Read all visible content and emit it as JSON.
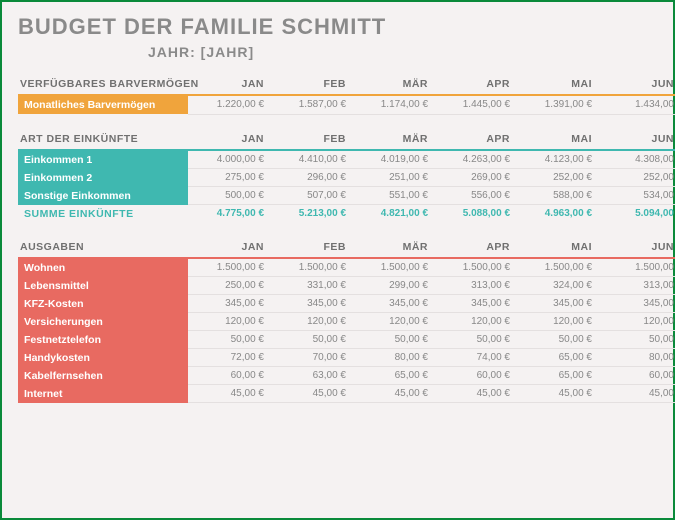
{
  "title": "BUDGET DER FAMILIE SCHMITT",
  "subtitle": "JAHR: [JAHR]",
  "months": [
    "JAN",
    "FEB",
    "MÄR",
    "APR",
    "MAI",
    "JUN"
  ],
  "colors": {
    "cash_accent": "#f0a43c",
    "income_accent": "#3fb8b0",
    "expense_accent": "#e86a61",
    "total_text": "#3fb8b0"
  },
  "sections": [
    {
      "id": "cash",
      "label": "VERFÜGBARES BARVERMÖGEN",
      "accent": "#f0a43c",
      "rows": [
        {
          "label": "Monatliches Barvermögen",
          "values": [
            "1.220,00 €",
            "1.587,00 €",
            "1.174,00 €",
            "1.445,00 €",
            "1.391,00 €",
            "1.434,00"
          ]
        }
      ]
    },
    {
      "id": "income",
      "label": "ART DER EINKÜNFTE",
      "accent": "#3fb8b0",
      "rows": [
        {
          "label": "Einkommen 1",
          "values": [
            "4.000,00 €",
            "4.410,00 €",
            "4.019,00 €",
            "4.263,00 €",
            "4.123,00 €",
            "4.308,00"
          ]
        },
        {
          "label": "Einkommen 2",
          "values": [
            "275,00 €",
            "296,00 €",
            "251,00 €",
            "269,00 €",
            "252,00 €",
            "252,00"
          ]
        },
        {
          "label": "Sonstige Einkommen",
          "values": [
            "500,00 €",
            "507,00 €",
            "551,00 €",
            "556,00 €",
            "588,00 €",
            "534,00"
          ]
        }
      ],
      "total": {
        "label": "SUMME EINKÜNFTE",
        "values": [
          "4.775,00 €",
          "5.213,00 €",
          "4.821,00 €",
          "5.088,00 €",
          "4.963,00 €",
          "5.094,00"
        ]
      }
    },
    {
      "id": "expense",
      "label": "AUSGABEN",
      "accent": "#e86a61",
      "rows": [
        {
          "label": "Wohnen",
          "values": [
            "1.500,00 €",
            "1.500,00 €",
            "1.500,00 €",
            "1.500,00 €",
            "1.500,00 €",
            "1.500,00"
          ]
        },
        {
          "label": "Lebensmittel",
          "values": [
            "250,00 €",
            "331,00 €",
            "299,00 €",
            "313,00 €",
            "324,00 €",
            "313,00"
          ]
        },
        {
          "label": "KFZ-Kosten",
          "values": [
            "345,00 €",
            "345,00 €",
            "345,00 €",
            "345,00 €",
            "345,00 €",
            "345,00"
          ]
        },
        {
          "label": "Versicherungen",
          "values": [
            "120,00 €",
            "120,00 €",
            "120,00 €",
            "120,00 €",
            "120,00 €",
            "120,00"
          ]
        },
        {
          "label": "Festnetztelefon",
          "values": [
            "50,00 €",
            "50,00 €",
            "50,00 €",
            "50,00 €",
            "50,00 €",
            "50,00"
          ]
        },
        {
          "label": "Handykosten",
          "values": [
            "72,00 €",
            "70,00 €",
            "80,00 €",
            "74,00 €",
            "65,00 €",
            "80,00"
          ]
        },
        {
          "label": "Kabelfernsehen",
          "values": [
            "60,00 €",
            "63,00 €",
            "65,00 €",
            "60,00 €",
            "65,00 €",
            "60,00"
          ]
        },
        {
          "label": "Internet",
          "values": [
            "45,00 €",
            "45,00 €",
            "45,00 €",
            "45,00 €",
            "45,00 €",
            "45,00"
          ]
        }
      ]
    }
  ]
}
